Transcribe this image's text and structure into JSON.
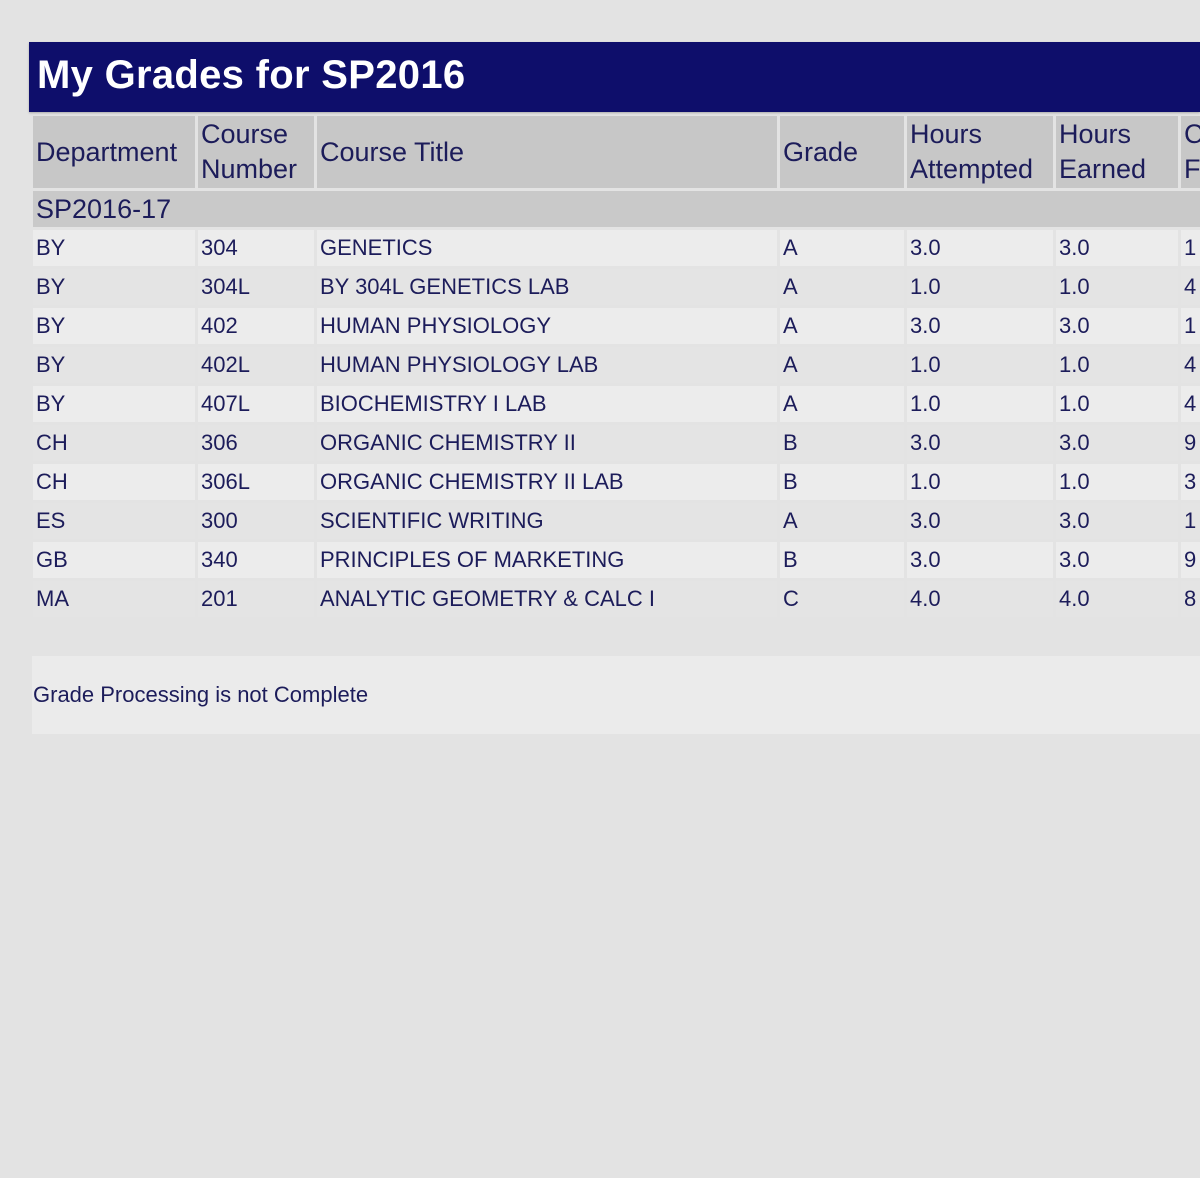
{
  "header": {
    "title": "My Grades for SP2016"
  },
  "columns": {
    "department": "Department",
    "course_number_1": "Course",
    "course_number_2": "Number",
    "course_title": "Course Title",
    "grade": "Grade",
    "hours_attempted_1": "Hours",
    "hours_attempted_2": "Attempted",
    "hours_earned_1": "Hours",
    "hours_earned_2": "Earned",
    "cut_1": "C",
    "cut_2": "F"
  },
  "term": "SP2016-17",
  "rows": [
    {
      "dept": "BY",
      "num": "304",
      "title": "GENETICS",
      "grade": "A",
      "attempted": "3.0",
      "earned": "3.0",
      "extra": "1"
    },
    {
      "dept": "BY",
      "num": "304L",
      "title": "BY 304L GENETICS LAB",
      "grade": "A",
      "attempted": "1.0",
      "earned": "1.0",
      "extra": "4"
    },
    {
      "dept": "BY",
      "num": "402",
      "title": "HUMAN PHYSIOLOGY",
      "grade": "A",
      "attempted": "3.0",
      "earned": "3.0",
      "extra": "1"
    },
    {
      "dept": "BY",
      "num": "402L",
      "title": "HUMAN PHYSIOLOGY LAB",
      "grade": "A",
      "attempted": "1.0",
      "earned": "1.0",
      "extra": "4"
    },
    {
      "dept": "BY",
      "num": "407L",
      "title": "BIOCHEMISTRY I LAB",
      "grade": "A",
      "attempted": "1.0",
      "earned": "1.0",
      "extra": "4"
    },
    {
      "dept": "CH",
      "num": "306",
      "title": "ORGANIC CHEMISTRY II",
      "grade": "B",
      "attempted": "3.0",
      "earned": "3.0",
      "extra": "9"
    },
    {
      "dept": "CH",
      "num": "306L",
      "title": "ORGANIC CHEMISTRY II LAB",
      "grade": "B",
      "attempted": "1.0",
      "earned": "1.0",
      "extra": "3"
    },
    {
      "dept": "ES",
      "num": "300",
      "title": "SCIENTIFIC WRITING",
      "grade": "A",
      "attempted": "3.0",
      "earned": "3.0",
      "extra": "1"
    },
    {
      "dept": "GB",
      "num": "340",
      "title": "PRINCIPLES OF MARKETING",
      "grade": "B",
      "attempted": "3.0",
      "earned": "3.0",
      "extra": "9"
    },
    {
      "dept": "MA",
      "num": "201",
      "title": "ANALYTIC GEOMETRY & CALC I",
      "grade": "C",
      "attempted": "4.0",
      "earned": "4.0",
      "extra": "8"
    }
  ],
  "footer": {
    "status": "Grade Processing is not Complete"
  },
  "colors": {
    "title_bar": "#0e0e6b",
    "text": "#1c1c5a",
    "header_cell": "#c7c7c7",
    "background": "#e3e3e3"
  }
}
